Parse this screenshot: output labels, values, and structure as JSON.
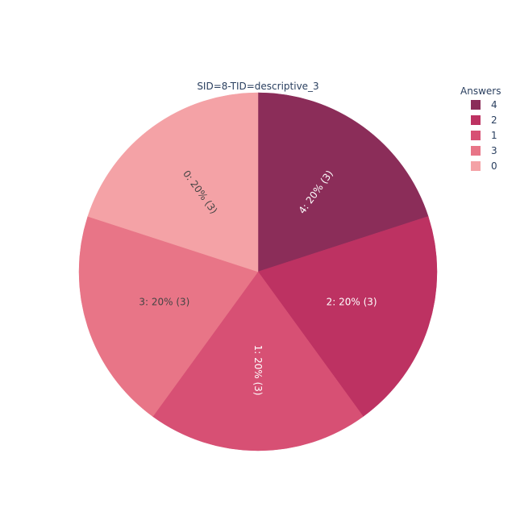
{
  "chart_data": {
    "type": "pie",
    "title": "SID=8-TID=descriptive_3",
    "legend": {
      "title": "Answers",
      "placement": "top-right"
    },
    "slices": [
      {
        "label": "4",
        "value": 3,
        "percent": "20%",
        "text": "4: 20% (3)",
        "color": "#8b2d59",
        "text_color": "#ffffff"
      },
      {
        "label": "2",
        "value": 3,
        "percent": "20%",
        "text": "2: 20% (3)",
        "color": "#bd3262",
        "text_color": "#ffffff"
      },
      {
        "label": "1",
        "value": 3,
        "percent": "20%",
        "text": "1: 20% (3)",
        "color": "#d75074",
        "text_color": "#ffffff"
      },
      {
        "label": "3",
        "value": 3,
        "percent": "20%",
        "text": "3: 20% (3)",
        "color": "#e87587",
        "text_color": "#444444"
      },
      {
        "label": "0",
        "value": 3,
        "percent": "20%",
        "text": "0: 20% (3)",
        "color": "#f4a2a6",
        "text_color": "#444444"
      }
    ]
  }
}
